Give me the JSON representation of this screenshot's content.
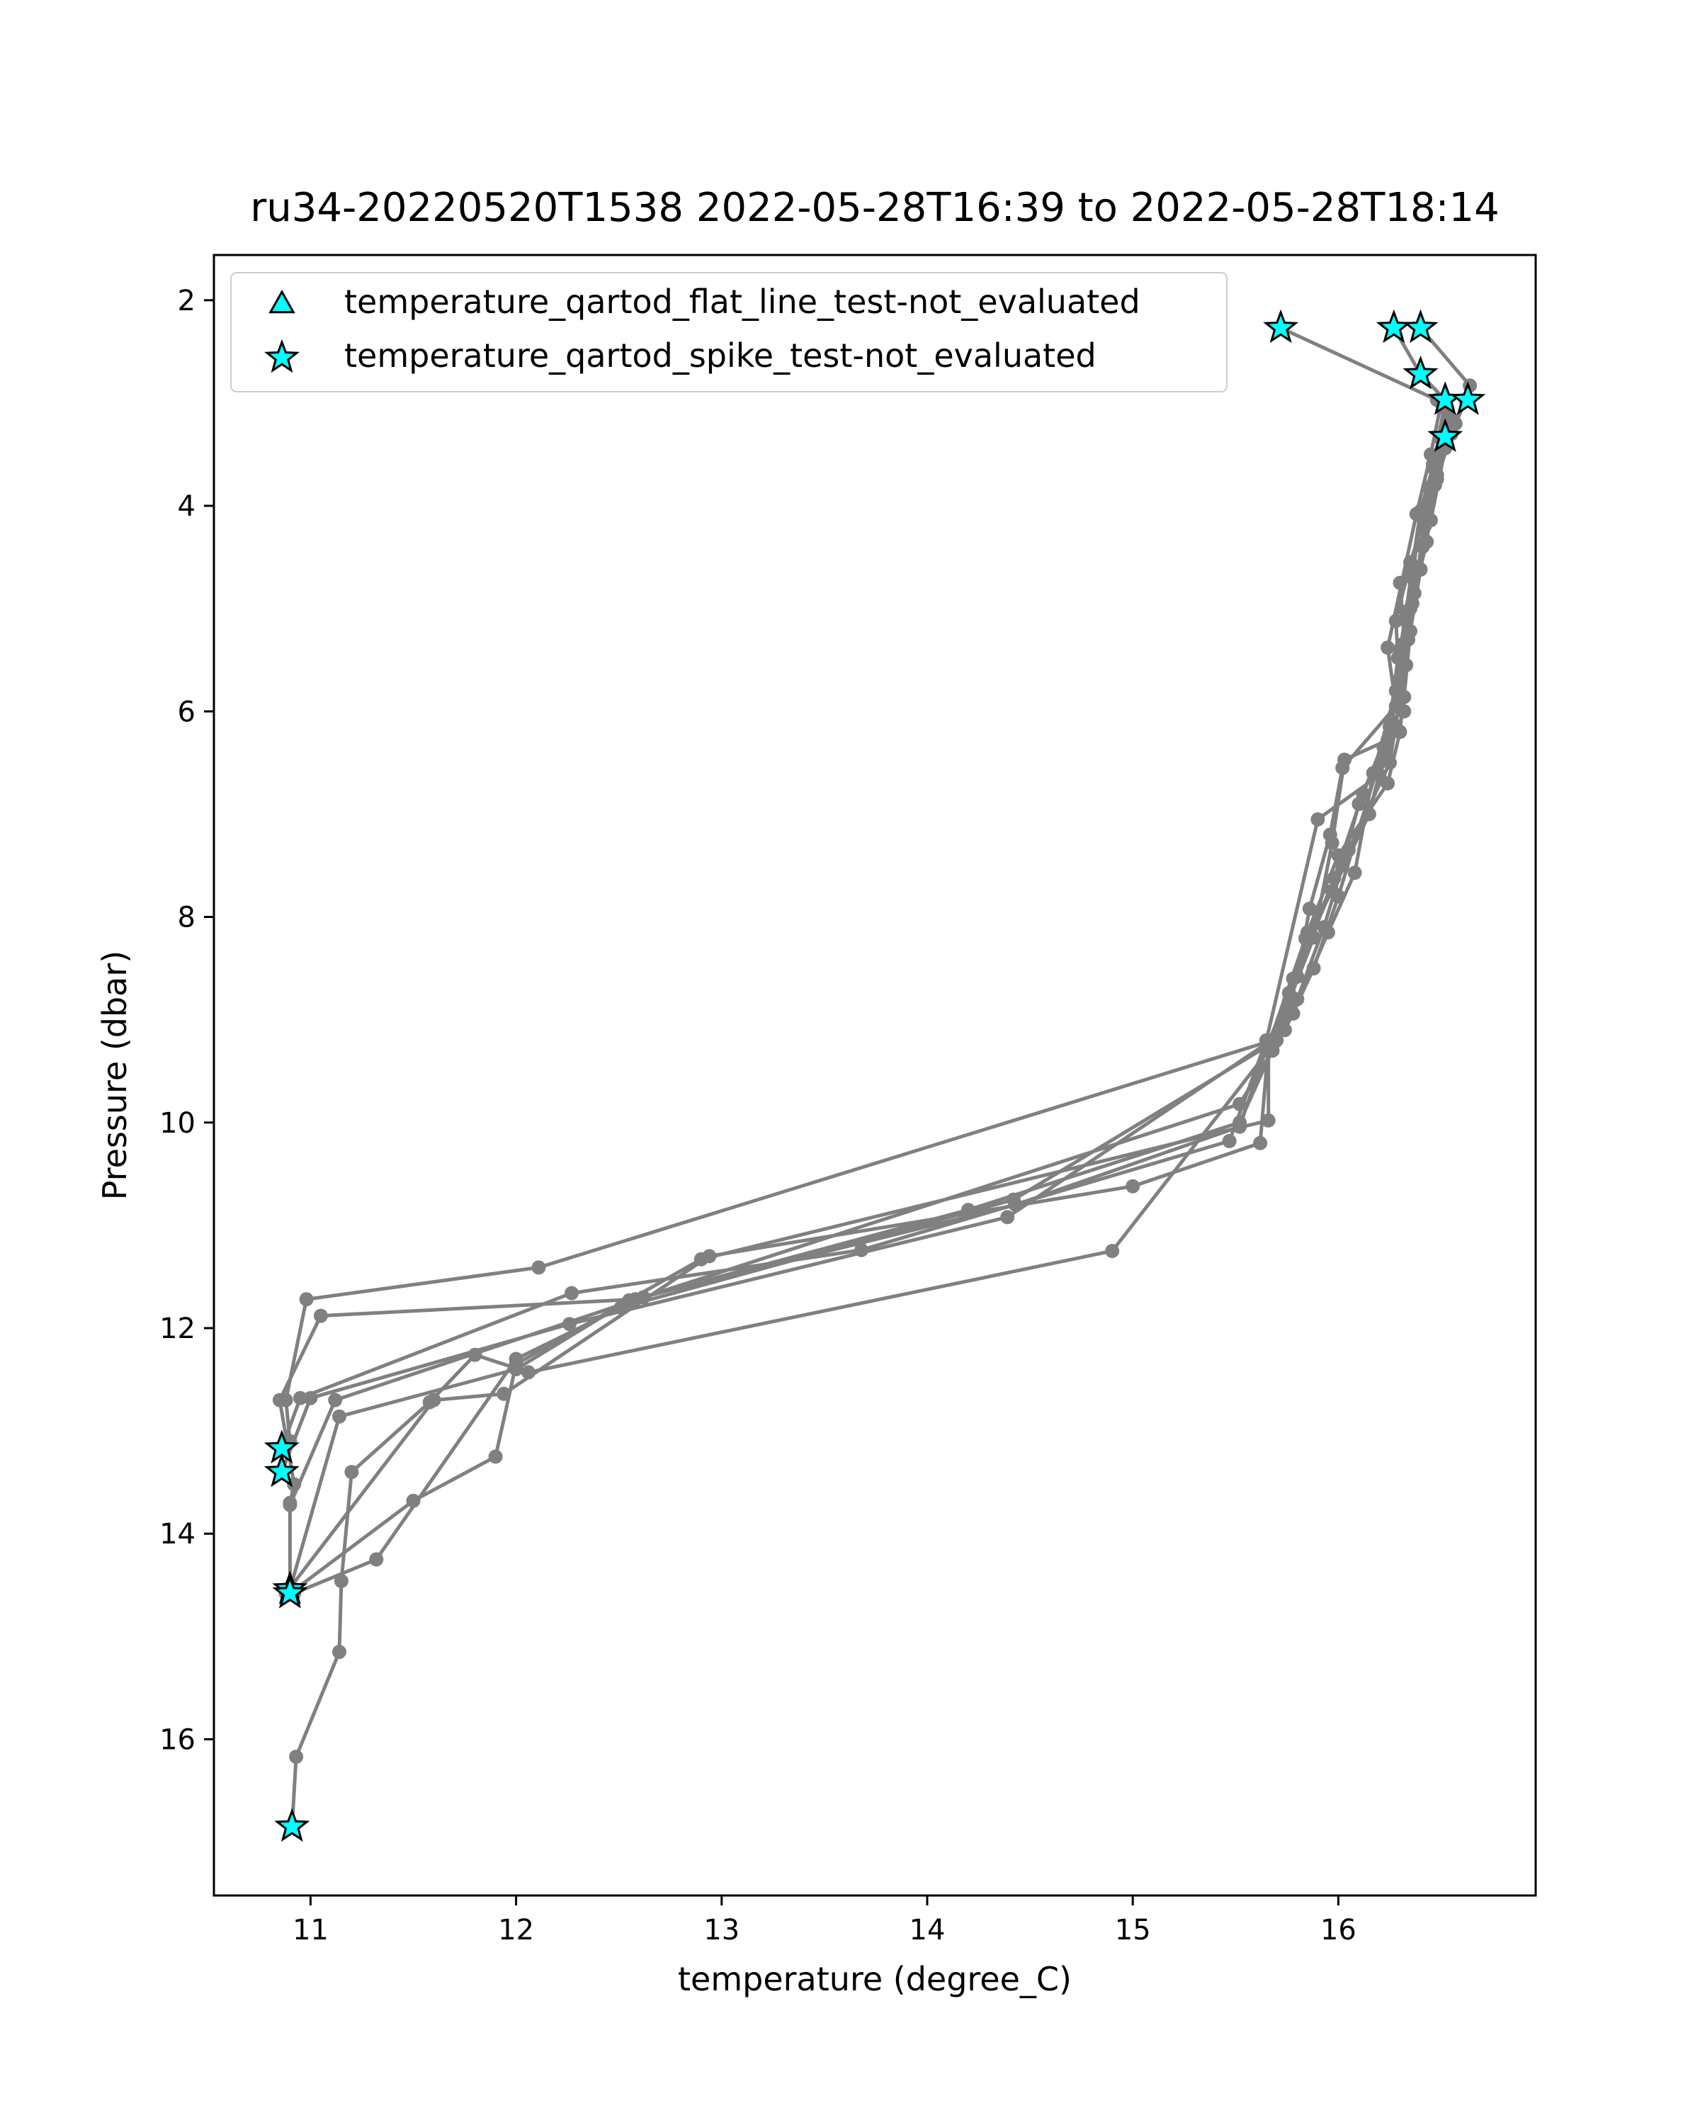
{
  "chart_data": {
    "type": "line",
    "title": "ru34-20220520T1538 2022-05-28T16:39 to 2022-05-28T18:14",
    "xlabel": "temperature (degree_C)",
    "ylabel": "Pressure (dbar)",
    "xlim": [
      10.53,
      16.96
    ],
    "ylim": [
      17.52,
      1.56
    ],
    "y_inverted": true,
    "x_ticks": [
      11,
      12,
      13,
      14,
      15,
      16
    ],
    "y_ticks": [
      2,
      4,
      6,
      8,
      10,
      12,
      14,
      16
    ],
    "grid": false,
    "legend": {
      "placement": "top-left",
      "entries": [
        {
          "label": "temperature_qartod_flat_line_test-not_evaluated",
          "marker": "triangle",
          "color": "#00ffff"
        },
        {
          "label": "temperature_qartod_spike_test-not_evaluated",
          "marker": "star",
          "color": "#00ffff"
        }
      ]
    },
    "line_color": "#808080",
    "marker_color": "#00ffff",
    "series": [
      {
        "points": [
          [
            15.72,
            2.27
          ],
          [
            16.48,
            2.97
          ],
          [
            16.55,
            3.3
          ],
          [
            16.48,
            3.74
          ],
          [
            16.35,
            4.55
          ],
          [
            16.28,
            5.12
          ],
          [
            16.3,
            5.85
          ],
          [
            16.25,
            6.5
          ],
          [
            16.05,
            7.35
          ],
          [
            15.78,
            8.6
          ],
          [
            15.68,
            9.3
          ],
          [
            15.52,
            9.82
          ],
          [
            12.62,
            11.7
          ],
          [
            11.12,
            12.7
          ],
          [
            10.9,
            13.72
          ],
          [
            10.9,
            14.58
          ]
        ]
      },
      {
        "points": [
          [
            16.27,
            2.27
          ],
          [
            16.4,
            2.72
          ],
          [
            16.52,
            2.97
          ],
          [
            16.47,
            3.55
          ],
          [
            16.4,
            4.05
          ],
          [
            16.36,
            4.58
          ],
          [
            16.33,
            5.03
          ],
          [
            16.3,
            5.4
          ],
          [
            16.32,
            6.0
          ],
          [
            16.2,
            6.62
          ],
          [
            15.9,
            7.05
          ],
          [
            15.65,
            9.2
          ],
          [
            15.47,
            10.18
          ],
          [
            13.68,
            11.24
          ],
          [
            12.27,
            11.66
          ],
          [
            10.95,
            12.68
          ],
          [
            10.86,
            13.17
          ]
        ]
      },
      {
        "points": [
          [
            16.4,
            2.27
          ],
          [
            16.64,
            2.83
          ],
          [
            16.62,
            2.97
          ],
          [
            16.52,
            3.44
          ],
          [
            16.45,
            4.14
          ],
          [
            16.3,
            4.75
          ],
          [
            16.33,
            5.55
          ],
          [
            16.25,
            6.15
          ],
          [
            16.12,
            6.8
          ],
          [
            15.98,
            7.62
          ],
          [
            15.76,
            8.74
          ],
          [
            15.66,
            9.22
          ],
          [
            14.39,
            10.92
          ],
          [
            12.26,
            11.96
          ],
          [
            11.0,
            12.68
          ],
          [
            10.86,
            13.4
          ]
        ]
      },
      {
        "points": [
          [
            16.63,
            2.97
          ],
          [
            16.52,
            3.33
          ],
          [
            16.46,
            3.6
          ],
          [
            16.4,
            4.62
          ],
          [
            16.35,
            5.22
          ],
          [
            16.32,
            5.86
          ],
          [
            16.22,
            6.44
          ],
          [
            16.15,
            7.0
          ],
          [
            15.97,
            7.75
          ],
          [
            15.84,
            8.21
          ],
          [
            15.66,
            9.25
          ],
          [
            15.62,
            10.2
          ],
          [
            15.0,
            10.62
          ],
          [
            12.94,
            11.3
          ],
          [
            11.94,
            12.64
          ],
          [
            11.6,
            12.7
          ],
          [
            10.88,
            14.58
          ]
        ]
      },
      {
        "points": [
          [
            16.5,
            3.0
          ],
          [
            16.45,
            3.5
          ],
          [
            16.38,
            4.08
          ],
          [
            16.24,
            5.38
          ],
          [
            16.28,
            5.95
          ],
          [
            16.02,
            6.55
          ],
          [
            15.96,
            7.2
          ],
          [
            15.86,
            7.92
          ],
          [
            15.8,
            8.58
          ],
          [
            15.66,
            9.22
          ],
          [
            15.52,
            10.04
          ],
          [
            14.43,
            10.8
          ],
          [
            12.55,
            11.73
          ],
          [
            12.0,
            12.4
          ],
          [
            11.14,
            12.86
          ],
          [
            10.9,
            14.54
          ]
        ]
      },
      {
        "points": [
          [
            16.52,
            3.05
          ],
          [
            16.44,
            3.82
          ],
          [
            16.39,
            4.6
          ],
          [
            16.33,
            5.1
          ],
          [
            16.28,
            5.8
          ],
          [
            16.17,
            6.6
          ],
          [
            16.08,
            7.57
          ],
          [
            15.95,
            8.15
          ],
          [
            15.78,
            8.94
          ],
          [
            15.68,
            9.2
          ],
          [
            12.11,
            11.41
          ],
          [
            10.98,
            11.72
          ],
          [
            10.88,
            12.7
          ],
          [
            10.9,
            13.1
          ],
          [
            10.86,
            13.18
          ]
        ]
      },
      {
        "points": [
          [
            16.55,
            3.15
          ],
          [
            16.48,
            3.7
          ],
          [
            16.42,
            4.2
          ],
          [
            16.36,
            4.95
          ],
          [
            16.29,
            5.48
          ],
          [
            16.24,
            6.28
          ],
          [
            16.03,
            6.47
          ],
          [
            15.97,
            7.28
          ],
          [
            15.88,
            8.2
          ],
          [
            15.76,
            8.82
          ],
          [
            15.68,
            9.25
          ],
          [
            14.9,
            11.25
          ],
          [
            12.06,
            12.43
          ],
          [
            11.8,
            12.26
          ],
          [
            11.58,
            12.72
          ],
          [
            11.2,
            13.4
          ],
          [
            11.15,
            14.46
          ],
          [
            11.14,
            15.15
          ],
          [
            10.93,
            16.17
          ],
          [
            10.91,
            16.85
          ]
        ]
      },
      {
        "points": [
          [
            16.57,
            3.2
          ],
          [
            16.47,
            3.65
          ],
          [
            16.4,
            4.1
          ],
          [
            16.36,
            4.7
          ],
          [
            16.31,
            5.35
          ],
          [
            16.26,
            6.1
          ],
          [
            16.1,
            6.9
          ],
          [
            16.02,
            7.5
          ],
          [
            15.93,
            8.1
          ],
          [
            15.8,
            8.8
          ],
          [
            15.7,
            9.2
          ],
          [
            15.52,
            10.0
          ],
          [
            14.2,
            10.85
          ],
          [
            12.58,
            11.72
          ],
          [
            11.05,
            11.88
          ],
          [
            10.85,
            12.7
          ],
          [
            10.92,
            13.52
          ],
          [
            10.9,
            13.7
          ]
        ]
      },
      {
        "points": [
          [
            16.52,
            3.25
          ],
          [
            16.48,
            3.55
          ],
          [
            16.43,
            4.35
          ],
          [
            16.37,
            4.85
          ],
          [
            16.34,
            5.3
          ],
          [
            16.3,
            6.2
          ],
          [
            16.24,
            6.7
          ],
          [
            16.0,
            7.4
          ],
          [
            15.85,
            8.15
          ],
          [
            15.73,
            9.0
          ],
          [
            15.66,
            9.25
          ],
          [
            15.66,
            9.98
          ],
          [
            12.9,
            11.33
          ],
          [
            12.0,
            12.35
          ],
          [
            11.9,
            13.25
          ],
          [
            11.5,
            13.68
          ],
          [
            10.9,
            14.58
          ]
        ]
      },
      {
        "points": [
          [
            16.5,
            3.35
          ],
          [
            16.47,
            3.8
          ],
          [
            16.41,
            4.4
          ],
          [
            16.35,
            5.0
          ],
          [
            16.29,
            5.7
          ],
          [
            16.22,
            6.35
          ],
          [
            16.0,
            7.8
          ],
          [
            15.88,
            8.5
          ],
          [
            15.74,
            9.1
          ],
          [
            15.66,
            9.25
          ],
          [
            14.42,
            10.75
          ],
          [
            12.51,
            11.8
          ],
          [
            12.0,
            12.3
          ],
          [
            11.32,
            14.25
          ],
          [
            10.92,
            14.58
          ]
        ]
      }
    ],
    "flat_line_markers": [],
    "spike_markers": [
      [
        15.72,
        2.27
      ],
      [
        16.27,
        2.27
      ],
      [
        16.4,
        2.27
      ],
      [
        16.4,
        2.72
      ],
      [
        16.52,
        2.97
      ],
      [
        16.63,
        2.97
      ],
      [
        16.52,
        3.33
      ],
      [
        10.86,
        13.17
      ],
      [
        10.86,
        13.4
      ],
      [
        10.9,
        14.54
      ],
      [
        10.9,
        14.58
      ],
      [
        10.91,
        16.85
      ]
    ]
  }
}
